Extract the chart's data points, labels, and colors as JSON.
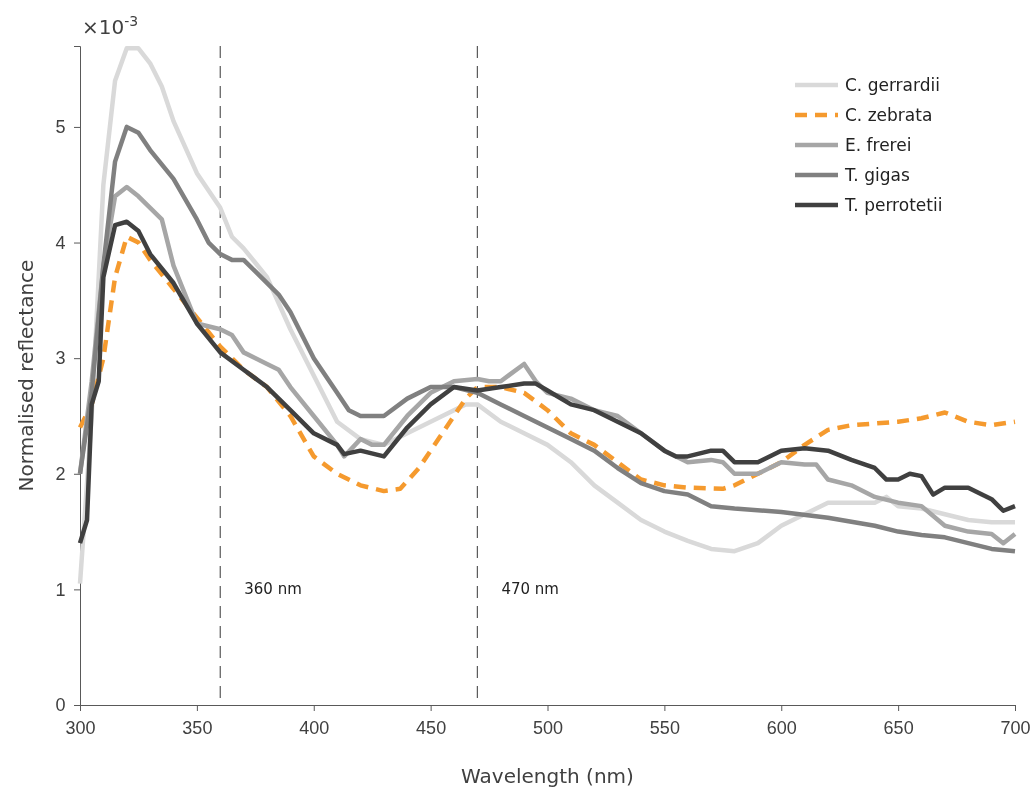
{
  "chart_data": {
    "type": "line",
    "xlabel": "Wavelength (nm)",
    "ylabel": "Normalised reflectance",
    "annotations": [
      "×10$^{-3}$"
    ],
    "xlim": [
      300,
      700
    ],
    "xticks": [
      300,
      350,
      400,
      450,
      500,
      550,
      600,
      650,
      700
    ],
    "ylim": [
      0,
      5.7
    ],
    "yticks": [
      0,
      1,
      2,
      3,
      4,
      5
    ],
    "grid": false,
    "legend": "top right",
    "ref_lines": [
      {
        "axis": "x",
        "value": 360,
        "label": "360 nm",
        "color": "#595959",
        "line_style": "dashed"
      },
      {
        "axis": "x",
        "value": 470,
        "label": "470 nm",
        "color": "#595959",
        "line_style": "dashed"
      }
    ],
    "series": [
      {
        "name": "C. gerrardii",
        "color": "#d9d9d9",
        "line_style": "solid",
        "x": [
          300,
          305,
          310,
          315,
          320,
          325,
          330,
          335,
          340,
          350,
          360,
          365,
          370,
          380,
          390,
          400,
          410,
          420,
          430,
          440,
          450,
          460,
          465,
          470,
          480,
          490,
          500,
          510,
          520,
          530,
          540,
          550,
          560,
          570,
          580,
          590,
          600,
          610,
          620,
          630,
          640,
          645,
          650,
          660,
          670,
          680,
          690,
          700
        ],
        "values": [
          1.05,
          2.5,
          4.5,
          5.4,
          5.68,
          5.68,
          5.55,
          5.35,
          5.05,
          4.6,
          4.3,
          4.05,
          3.95,
          3.7,
          3.25,
          2.85,
          2.45,
          2.3,
          2.25,
          2.35,
          2.45,
          2.55,
          2.6,
          2.6,
          2.45,
          2.35,
          2.25,
          2.1,
          1.9,
          1.75,
          1.6,
          1.5,
          1.42,
          1.35,
          1.33,
          1.4,
          1.55,
          1.65,
          1.75,
          1.75,
          1.75,
          1.8,
          1.72,
          1.7,
          1.65,
          1.6,
          1.58,
          1.58
        ]
      },
      {
        "name": "C. zebrata",
        "color": "#f59a2e",
        "line_style": "dashed",
        "x": [
          300,
          305,
          310,
          315,
          320,
          325,
          330,
          340,
          350,
          360,
          370,
          380,
          390,
          400,
          410,
          420,
          430,
          437,
          445,
          455,
          465,
          470,
          480,
          490,
          500,
          510,
          520,
          530,
          540,
          550,
          560,
          575,
          580,
          590,
          600,
          610,
          620,
          630,
          650,
          660,
          670,
          680,
          690,
          700
        ],
        "values": [
          2.4,
          2.6,
          3.0,
          3.7,
          4.05,
          4.0,
          3.85,
          3.6,
          3.35,
          3.1,
          2.9,
          2.75,
          2.5,
          2.15,
          2.0,
          1.9,
          1.85,
          1.87,
          2.05,
          2.35,
          2.65,
          2.75,
          2.75,
          2.7,
          2.55,
          2.35,
          2.25,
          2.1,
          1.95,
          1.9,
          1.88,
          1.87,
          1.9,
          2.0,
          2.1,
          2.25,
          2.38,
          2.42,
          2.45,
          2.48,
          2.53,
          2.45,
          2.42,
          2.45
        ]
      },
      {
        "name": "E. frerei",
        "color": "#a6a6a6",
        "line_style": "solid",
        "x": [
          300,
          305,
          310,
          315,
          320,
          325,
          330,
          335,
          340,
          345,
          350,
          360,
          365,
          370,
          380,
          385,
          390,
          400,
          410,
          413,
          420,
          425,
          430,
          440,
          450,
          460,
          470,
          475,
          480,
          490,
          495,
          500,
          510,
          520,
          530,
          540,
          550,
          560,
          570,
          575,
          580,
          590,
          595,
          600,
          610,
          615,
          620,
          630,
          640,
          650,
          660,
          670,
          680,
          690,
          695,
          700
        ],
        "values": [
          2.0,
          2.8,
          3.8,
          4.4,
          4.48,
          4.4,
          4.3,
          4.2,
          3.8,
          3.55,
          3.3,
          3.25,
          3.2,
          3.05,
          2.95,
          2.9,
          2.75,
          2.5,
          2.25,
          2.15,
          2.3,
          2.25,
          2.25,
          2.5,
          2.7,
          2.8,
          2.82,
          2.8,
          2.8,
          2.95,
          2.8,
          2.7,
          2.65,
          2.55,
          2.5,
          2.35,
          2.2,
          2.1,
          2.12,
          2.1,
          2.0,
          2.0,
          2.05,
          2.1,
          2.08,
          2.08,
          1.95,
          1.9,
          1.8,
          1.75,
          1.72,
          1.55,
          1.5,
          1.48,
          1.4,
          1.48
        ]
      },
      {
        "name": "T. gigas",
        "color": "#808080",
        "line_style": "solid",
        "x": [
          300,
          305,
          310,
          315,
          320,
          325,
          330,
          340,
          350,
          355,
          360,
          365,
          370,
          375,
          385,
          390,
          400,
          410,
          415,
          420,
          430,
          440,
          450,
          460,
          470,
          480,
          490,
          500,
          510,
          520,
          530,
          540,
          550,
          560,
          570,
          580,
          600,
          620,
          640,
          650,
          660,
          670,
          680,
          690,
          700
        ],
        "values": [
          2.0,
          2.7,
          3.8,
          4.7,
          5.0,
          4.95,
          4.8,
          4.55,
          4.2,
          4.0,
          3.9,
          3.85,
          3.85,
          3.75,
          3.55,
          3.4,
          3.0,
          2.7,
          2.55,
          2.5,
          2.5,
          2.65,
          2.75,
          2.75,
          2.7,
          2.6,
          2.5,
          2.4,
          2.3,
          2.2,
          2.05,
          1.92,
          1.85,
          1.82,
          1.72,
          1.7,
          1.67,
          1.62,
          1.55,
          1.5,
          1.47,
          1.45,
          1.4,
          1.35,
          1.33
        ]
      },
      {
        "name": "T. perrotetii",
        "color": "#404040",
        "line_style": "solid",
        "x": [
          300,
          303,
          305,
          308,
          310,
          315,
          320,
          325,
          330,
          340,
          350,
          360,
          370,
          380,
          390,
          400,
          410,
          413,
          420,
          430,
          440,
          450,
          460,
          470,
          480,
          490,
          495,
          500,
          510,
          520,
          530,
          540,
          550,
          555,
          560,
          570,
          575,
          580,
          590,
          600,
          610,
          620,
          630,
          640,
          645,
          650,
          655,
          660,
          665,
          670,
          680,
          690,
          695,
          700
        ],
        "values": [
          1.4,
          1.6,
          2.6,
          2.8,
          3.7,
          4.15,
          4.18,
          4.1,
          3.9,
          3.65,
          3.3,
          3.05,
          2.9,
          2.75,
          2.55,
          2.35,
          2.25,
          2.17,
          2.2,
          2.15,
          2.4,
          2.6,
          2.75,
          2.72,
          2.75,
          2.78,
          2.78,
          2.72,
          2.6,
          2.55,
          2.45,
          2.35,
          2.2,
          2.15,
          2.15,
          2.2,
          2.2,
          2.1,
          2.1,
          2.2,
          2.22,
          2.2,
          2.12,
          2.05,
          1.95,
          1.95,
          2.0,
          1.98,
          1.82,
          1.88,
          1.88,
          1.78,
          1.68,
          1.72
        ]
      }
    ]
  }
}
